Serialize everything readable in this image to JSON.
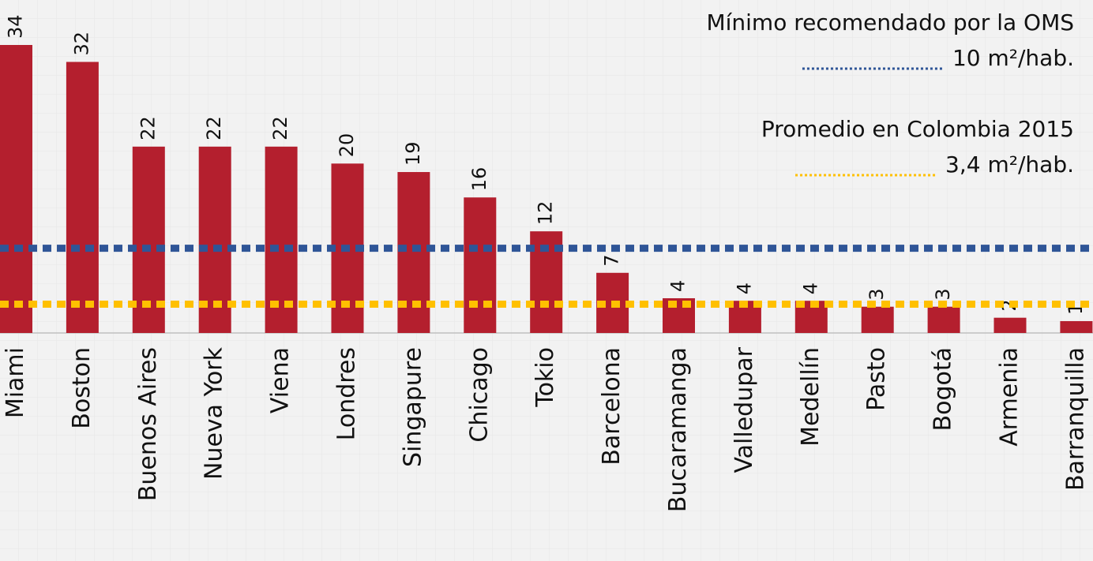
{
  "chart_data": {
    "type": "bar",
    "categories": [
      "Miami",
      "Boston",
      "Buenos Aires",
      "Nueva York",
      "Viena",
      "Londres",
      "Singapure",
      "Chicago",
      "Tokio",
      "Barcelona",
      "Bucaramanga",
      "Valledupar",
      "Medellín",
      "Pasto",
      "Bogotá",
      "Armenia",
      "Barranquilla"
    ],
    "values": [
      34,
      32,
      22,
      22,
      22,
      20,
      19,
      16,
      12,
      7.1,
      4.1,
      3.8,
      3.8,
      3.1,
      3.1,
      1.8,
      1.4
    ],
    "value_labels": [
      "34",
      "32",
      "22",
      "22",
      "22",
      "20",
      "19",
      "16",
      "12",
      "7",
      "4",
      "4",
      "4",
      "3",
      "3",
      "2",
      "1"
    ],
    "color": "#b41f2e",
    "ylim": [
      0,
      34
    ],
    "reference_lines": [
      {
        "name": "Mínimo recomendado por la OMS",
        "value": 10,
        "label": "10 m²/hab.",
        "color": "#2f5597"
      },
      {
        "name": "Promedio en Colombia 2015",
        "value": 3.4,
        "label": "3,4 m²/hab.",
        "color": "#ffc000"
      }
    ]
  }
}
